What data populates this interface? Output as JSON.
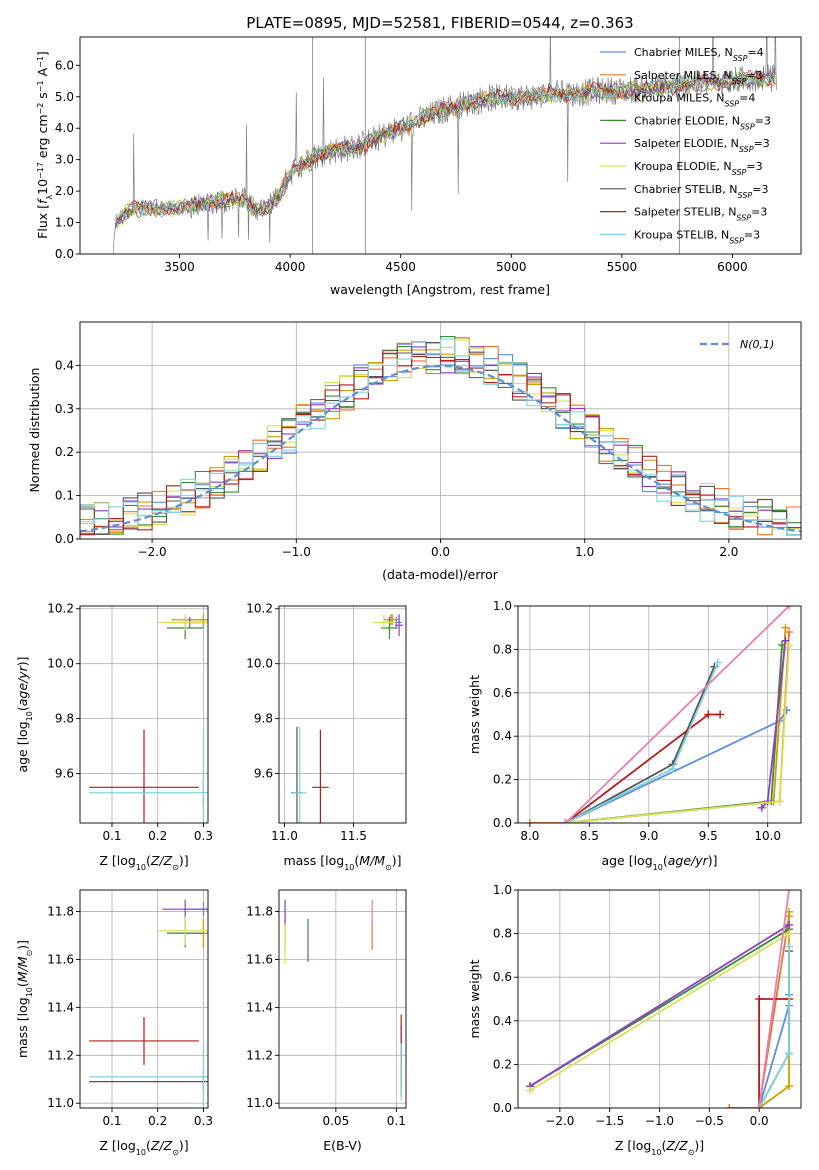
{
  "figure_title": "PLATE=0895, MJD=52581, FIBERID=0544, z=0.363",
  "colors": {
    "Chabrier MILES": "#5b8fe0",
    "Salpeter MILES": "#e8772b",
    "Kroupa MILES": "#c8a000",
    "Chabrier ELODIE": "#3a8a3a",
    "Salpeter ELODIE": "#8e3fbf",
    "Kroupa ELODIE": "#d8e05a",
    "Chabrier STELIB": "#555555",
    "Salpeter STELIB": "#b51b1b",
    "Kroupa STELIB": "#7fd3e0",
    "Data": "#7f7f7f",
    "Gaussian": "#5b8fd6",
    "Extra": "#e87fb0"
  },
  "chart_data": [
    {
      "id": "spectrum",
      "type": "line",
      "xlabel": "wavelength [Angstrom, rest frame]",
      "ylabel": "Flux [f_λ 10^-17 erg cm^-2 s^-1 A^-1]",
      "xlim": [
        3050,
        6310
      ],
      "ylim": [
        0,
        6.9
      ],
      "xticks": [
        3500,
        4000,
        4500,
        5000,
        5500,
        6000
      ],
      "yticks": [
        0,
        1,
        2,
        3,
        4,
        5,
        6
      ],
      "grid": false,
      "legend_position": "top-right",
      "legend": [
        {
          "name": "Chabrier MILES",
          "nssp": "4"
        },
        {
          "name": "Salpeter MILES",
          "nssp": "3"
        },
        {
          "name": "Kroupa MILES",
          "nssp": "4"
        },
        {
          "name": "Chabrier ELODIE",
          "nssp": "3"
        },
        {
          "name": "Salpeter ELODIE",
          "nssp": "3"
        },
        {
          "name": "Kroupa ELODIE",
          "nssp": "3"
        },
        {
          "name": "Chabrier STELIB",
          "nssp": "3"
        },
        {
          "name": "Salpeter STELIB",
          "nssp": "3"
        },
        {
          "name": "Kroupa STELIB",
          "nssp": "3"
        }
      ],
      "continuum_points": [
        [
          3200,
          0.0
        ],
        [
          3210,
          1.0
        ],
        [
          3260,
          1.3
        ],
        [
          3300,
          1.45
        ],
        [
          3400,
          1.45
        ],
        [
          3500,
          1.45
        ],
        [
          3600,
          1.6
        ],
        [
          3700,
          1.7
        ],
        [
          3800,
          1.75
        ],
        [
          3850,
          1.35
        ],
        [
          3900,
          1.5
        ],
        [
          3950,
          1.8
        ],
        [
          4000,
          2.6
        ],
        [
          4100,
          3.1
        ],
        [
          4200,
          3.3
        ],
        [
          4300,
          3.4
        ],
        [
          4400,
          3.7
        ],
        [
          4500,
          4.0
        ],
        [
          4600,
          4.3
        ],
        [
          4700,
          4.6
        ],
        [
          4800,
          4.8
        ],
        [
          4900,
          4.95
        ],
        [
          5000,
          5.0
        ],
        [
          5100,
          5.0
        ],
        [
          5200,
          5.1
        ],
        [
          5300,
          5.1
        ],
        [
          5400,
          5.2
        ],
        [
          5500,
          5.2
        ],
        [
          5600,
          5.25
        ],
        [
          5700,
          5.3
        ],
        [
          5800,
          5.4
        ],
        [
          5900,
          5.45
        ],
        [
          6000,
          5.5
        ],
        [
          6100,
          5.6
        ],
        [
          6200,
          5.6
        ]
      ],
      "data_noise_amplitude": 0.45
    },
    {
      "id": "residuals",
      "type": "step",
      "xlabel": "(data-model)/error",
      "ylabel": "Normed distribution",
      "xlim": [
        -2.5,
        2.5
      ],
      "ylim": [
        0,
        0.5
      ],
      "xticks": [
        -2,
        -1,
        0,
        1,
        2
      ],
      "yticks": [
        0.0,
        0.1,
        0.2,
        0.3,
        0.4
      ],
      "grid": true,
      "legend_position": "top-right",
      "gaussian_label": "N(0,1)",
      "bin_width": 0.1,
      "models": [
        "Chabrier MILES",
        "Salpeter MILES",
        "Kroupa MILES",
        "Chabrier ELODIE",
        "Salpeter ELODIE",
        "Kroupa ELODIE",
        "Chabrier STELIB",
        "Salpeter STELIB",
        "Kroupa STELIB"
      ]
    },
    {
      "id": "age-vs-Z",
      "type": "errorbar",
      "xlabel": "Z [log10(Z/Z⊙)]",
      "ylabel": "age [log10(age/yr)]",
      "xlim": [
        0.03,
        0.31
      ],
      "ylim": [
        9.42,
        10.21
      ],
      "xticks": [
        0.1,
        0.2,
        0.3
      ],
      "yticks": [
        9.6,
        9.8,
        10.0,
        10.2
      ],
      "grid": true,
      "points": [
        {
          "model": "Chabrier MILES",
          "x": 0.3,
          "xerr": 0.05,
          "y": 10.15,
          "yerr": 0.02
        },
        {
          "model": "Salpeter MILES",
          "x": 0.3,
          "xerr": 0.04,
          "y": 10.16,
          "yerr": 0.02
        },
        {
          "model": "Kroupa MILES",
          "x": 0.3,
          "xerr": 0.07,
          "y": 10.16,
          "yerr": 0.02
        },
        {
          "model": "Chabrier ELODIE",
          "x": 0.26,
          "xerr": 0.04,
          "y": 10.13,
          "yerr": 0.04
        },
        {
          "model": "Salpeter ELODIE",
          "x": 0.27,
          "xerr": 0.05,
          "y": 10.15,
          "yerr": 0.02
        },
        {
          "model": "Kroupa ELODIE",
          "x": 0.26,
          "xerr": 0.06,
          "y": 10.15,
          "yerr": 0.03
        },
        {
          "model": "Chabrier STELIB",
          "x": 0.3,
          "xerr": 0.0,
          "y": 9.53,
          "yerr": 0.05
        },
        {
          "model": "Salpeter STELIB",
          "x": 0.17,
          "xerr": 0.12,
          "y": 9.55,
          "yerr": 0.21
        },
        {
          "model": "Kroupa STELIB",
          "x": 0.3,
          "xerr": 0.25,
          "y": 9.53,
          "yerr": 0.24
        }
      ]
    },
    {
      "id": "age-vs-mass",
      "type": "errorbar",
      "xlabel": "mass [log10(M/M⊙)]",
      "ylabel": "",
      "xlim": [
        10.96,
        11.88
      ],
      "ylim": [
        9.42,
        10.21
      ],
      "xticks": [
        11.0,
        11.5
      ],
      "yticks": [
        9.6,
        9.8,
        10.0,
        10.2
      ],
      "grid": true,
      "points": [
        {
          "model": "Chabrier MILES",
          "x": 11.81,
          "xerr": 0.04,
          "y": 10.15,
          "yerr": 0.02
        },
        {
          "model": "Salpeter MILES",
          "x": 11.78,
          "xerr": 0.05,
          "y": 10.16,
          "yerr": 0.02
        },
        {
          "model": "Kroupa MILES",
          "x": 11.77,
          "xerr": 0.05,
          "y": 10.16,
          "yerr": 0.02
        },
        {
          "model": "Chabrier ELODIE",
          "x": 11.76,
          "xerr": 0.06,
          "y": 10.13,
          "yerr": 0.04
        },
        {
          "model": "Salpeter ELODIE",
          "x": 11.83,
          "xerr": 0.03,
          "y": 10.14,
          "yerr": 0.04
        },
        {
          "model": "Kroupa ELODIE",
          "x": 11.72,
          "xerr": 0.08,
          "y": 10.15,
          "yerr": 0.03
        },
        {
          "model": "Chabrier STELIB",
          "x": 11.09,
          "xerr": 0.04,
          "y": 9.53,
          "yerr": 0.24
        },
        {
          "model": "Salpeter STELIB",
          "x": 11.26,
          "xerr": 0.06,
          "y": 9.55,
          "yerr": 0.21
        },
        {
          "model": "Kroupa STELIB",
          "x": 11.11,
          "xerr": 0.05,
          "y": 9.53,
          "yerr": 0.24
        }
      ]
    },
    {
      "id": "weight-vs-age",
      "type": "cumulative-line",
      "xlabel": "age [log10(age/yr)]",
      "ylabel": "mass weight",
      "xlim": [
        7.9,
        10.28
      ],
      "ylim": [
        0,
        1.0
      ],
      "xticks": [
        8.0,
        8.5,
        9.0,
        9.5,
        10.0
      ],
      "yticks": [
        0.0,
        0.2,
        0.4,
        0.6,
        0.8,
        1.0
      ],
      "grid": true,
      "series": [
        {
          "model": "Chabrier MILES",
          "points": [
            [
              8.3,
              0.0
            ],
            [
              10.1,
              0.47
            ],
            [
              10.16,
              0.52
            ]
          ]
        },
        {
          "model": "Salpeter MILES",
          "points": [
            [
              8.0,
              0.0
            ],
            [
              8.3,
              0.0
            ],
            [
              10.1,
              0.1
            ],
            [
              10.18,
              0.88
            ]
          ]
        },
        {
          "model": "Kroupa MILES",
          "points": [
            [
              8.3,
              0.0
            ],
            [
              10.05,
              0.1
            ],
            [
              10.15,
              0.9
            ]
          ]
        },
        {
          "model": "Chabrier ELODIE",
          "points": [
            [
              8.3,
              0.0
            ],
            [
              10.03,
              0.1
            ],
            [
              10.12,
              0.82
            ]
          ]
        },
        {
          "model": "Salpeter ELODIE",
          "points": [
            [
              9.95,
              0.07
            ],
            [
              10.0,
              0.1
            ],
            [
              10.15,
              0.84
            ]
          ]
        },
        {
          "model": "Kroupa ELODIE",
          "points": [
            [
              8.3,
              0.0
            ],
            [
              10.1,
              0.1
            ],
            [
              10.18,
              0.82
            ]
          ]
        },
        {
          "model": "Chabrier STELIB",
          "points": [
            [
              8.3,
              0.0
            ],
            [
              9.2,
              0.27
            ],
            [
              9.55,
              0.72
            ]
          ]
        },
        {
          "model": "Salpeter STELIB",
          "points": [
            [
              8.3,
              0.0
            ],
            [
              9.5,
              0.5
            ],
            [
              9.6,
              0.5
            ]
          ]
        },
        {
          "model": "Kroupa STELIB",
          "points": [
            [
              8.3,
              0.0
            ],
            [
              9.2,
              0.25
            ],
            [
              9.58,
              0.74
            ]
          ]
        },
        {
          "model": "Extra",
          "points": [
            [
              8.3,
              0.0
            ],
            [
              10.18,
              1.0
            ]
          ]
        }
      ]
    },
    {
      "id": "mass-vs-Z",
      "type": "errorbar",
      "xlabel": "Z [log10(Z/Z⊙)]",
      "ylabel": "mass [log10(M/M⊙)]",
      "xlim": [
        0.03,
        0.31
      ],
      "ylim": [
        10.98,
        11.89
      ],
      "xticks": [
        0.1,
        0.2,
        0.3
      ],
      "yticks": [
        11.0,
        11.2,
        11.4,
        11.6,
        11.8
      ],
      "grid": true,
      "points": [
        {
          "model": "Chabrier MILES",
          "x": 0.3,
          "xerr": 0.04,
          "y": 11.81,
          "yerr": 0.03
        },
        {
          "model": "Salpeter MILES",
          "x": 0.3,
          "xerr": 0.04,
          "y": 11.71,
          "yerr": 0.06
        },
        {
          "model": "Kroupa MILES",
          "x": 0.3,
          "xerr": 0.07,
          "y": 11.71,
          "yerr": 0.06
        },
        {
          "model": "Chabrier ELODIE",
          "x": 0.26,
          "xerr": 0.04,
          "y": 11.71,
          "yerr": 0.06
        },
        {
          "model": "Salpeter ELODIE",
          "x": 0.26,
          "xerr": 0.05,
          "y": 11.81,
          "yerr": 0.04
        },
        {
          "model": "Kroupa ELODIE",
          "x": 0.26,
          "xerr": 0.06,
          "y": 11.72,
          "yerr": 0.06
        },
        {
          "model": "Chabrier STELIB",
          "x": 0.3,
          "xerr": 0.25,
          "y": 11.09,
          "yerr": 0.05
        },
        {
          "model": "Salpeter STELIB",
          "x": 0.17,
          "xerr": 0.12,
          "y": 11.26,
          "yerr": 0.1
        },
        {
          "model": "Kroupa STELIB",
          "x": 0.3,
          "xerr": 0.25,
          "y": 11.11,
          "yerr": 0.14
        }
      ]
    },
    {
      "id": "mass-vs-EBV",
      "type": "errorbar",
      "xlabel": "E(B-V)",
      "ylabel": "",
      "xlim": [
        0.003,
        0.108
      ],
      "ylim": [
        10.98,
        11.89
      ],
      "xticks": [
        0.05,
        0.1
      ],
      "yticks": [
        11.0,
        11.2,
        11.4,
        11.6,
        11.8
      ],
      "grid": true,
      "points": [
        {
          "model": "Chabrier MILES",
          "x": 0.104,
          "xerr": 0.0,
          "y": 11.2,
          "yerr": 0.12
        },
        {
          "model": "Salpeter MILES",
          "x": 0.08,
          "xerr": 0.0,
          "y": 11.7,
          "yerr": 0.06
        },
        {
          "model": "Kroupa MILES",
          "x": 0.008,
          "xerr": 0.0,
          "y": 11.71,
          "yerr": 0.06
        },
        {
          "model": "Chabrier ELODIE",
          "x": 0.027,
          "xerr": 0.0,
          "y": 11.68,
          "yerr": 0.09
        },
        {
          "model": "Salpeter ELODIE",
          "x": 0.008,
          "xerr": 0.0,
          "y": 11.8,
          "yerr": 0.05
        },
        {
          "model": "Kroupa ELODIE",
          "x": 0.008,
          "xerr": 0.0,
          "y": 11.66,
          "yerr": 0.08
        },
        {
          "model": "Chabrier STELIB",
          "x": 0.104,
          "xerr": 0.0,
          "y": 11.13,
          "yerr": 0.1
        },
        {
          "model": "Salpeter STELIB",
          "x": 0.104,
          "xerr": 0.0,
          "y": 11.26,
          "yerr": 0.11
        },
        {
          "model": "Kroupa STELIB",
          "x": 0.104,
          "xerr": 0.0,
          "y": 11.13,
          "yerr": 0.12
        },
        {
          "model": "Extra",
          "x": 0.08,
          "xerr": 0.0,
          "y": 11.8,
          "yerr": 0.05
        }
      ]
    },
    {
      "id": "weight-vs-Z",
      "type": "cumulative-line",
      "xlabel": "Z [log10(Z/Z⊙)]",
      "ylabel": "mass weight",
      "xlim": [
        -2.42,
        0.42
      ],
      "ylim": [
        0,
        1.0
      ],
      "xticks": [
        -2.0,
        -1.5,
        -1.0,
        -0.5,
        0.0
      ],
      "yticks": [
        0.0,
        0.2,
        0.4,
        0.6,
        0.8,
        1.0
      ],
      "grid": true,
      "series": [
        {
          "model": "Chabrier MILES",
          "points": [
            [
              0.0,
              0.0
            ],
            [
              0.3,
              0.47
            ],
            [
              0.3,
              0.52
            ]
          ]
        },
        {
          "model": "Salpeter MILES",
          "points": [
            [
              -0.3,
              0.0
            ],
            [
              0.0,
              0.0
            ],
            [
              0.3,
              0.88
            ]
          ]
        },
        {
          "model": "Kroupa MILES",
          "points": [
            [
              0.0,
              0.0
            ],
            [
              0.3,
              0.1
            ],
            [
              0.3,
              0.9
            ]
          ]
        },
        {
          "model": "Chabrier ELODIE",
          "points": [
            [
              -2.3,
              0.1
            ],
            [
              0.3,
              0.82
            ]
          ]
        },
        {
          "model": "Salpeter ELODIE",
          "points": [
            [
              -2.3,
              0.1
            ],
            [
              0.3,
              0.84
            ]
          ]
        },
        {
          "model": "Kroupa ELODIE",
          "points": [
            [
              -2.3,
              0.08
            ],
            [
              0.3,
              0.8
            ]
          ]
        },
        {
          "model": "Chabrier STELIB",
          "points": [
            [
              0.0,
              0.0
            ],
            [
              0.3,
              0.25
            ],
            [
              0.3,
              0.72
            ]
          ]
        },
        {
          "model": "Salpeter STELIB",
          "points": [
            [
              0.0,
              0.0
            ],
            [
              0.0,
              0.5
            ],
            [
              0.3,
              0.5
            ]
          ]
        },
        {
          "model": "Kroupa STELIB",
          "points": [
            [
              0.0,
              0.0
            ],
            [
              0.3,
              0.25
            ],
            [
              0.3,
              0.74
            ]
          ]
        },
        {
          "model": "Extra",
          "points": [
            [
              0.0,
              0.0
            ],
            [
              0.3,
              1.0
            ]
          ]
        }
      ]
    }
  ]
}
